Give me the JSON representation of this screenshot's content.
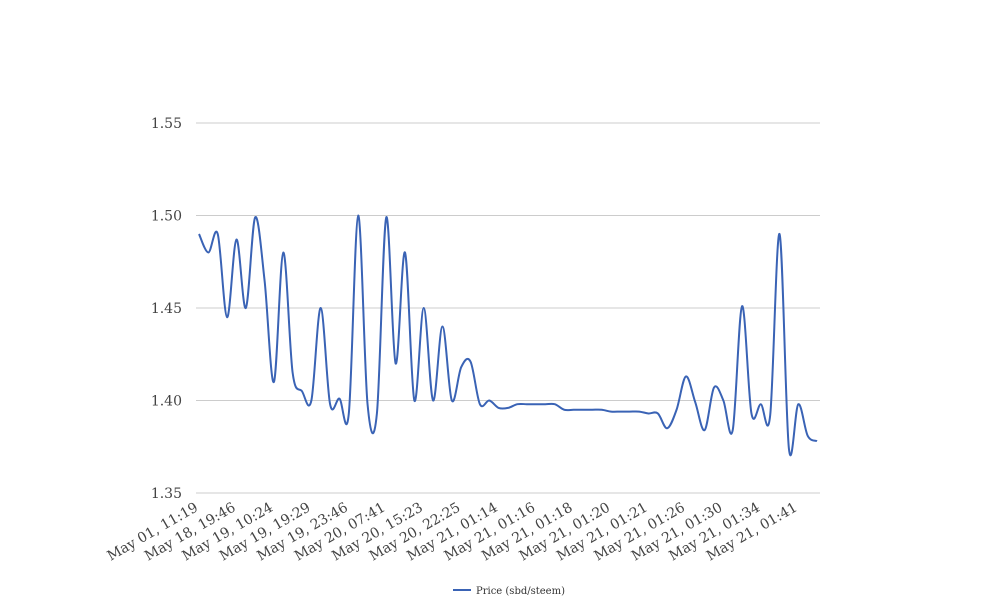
{
  "chart_data": {
    "type": "line",
    "categories": [
      "May 01, 11:19",
      null,
      null,
      null,
      "May 18, 19:46",
      null,
      null,
      null,
      "May 19, 10:24",
      null,
      null,
      null,
      "May 19, 19:29",
      null,
      null,
      null,
      "May 19, 23:46",
      null,
      null,
      null,
      "May 20, 07:41",
      null,
      null,
      null,
      "May 20, 15:23",
      null,
      null,
      null,
      "May 20, 22:25",
      null,
      null,
      null,
      "May 21, 01:14",
      null,
      null,
      null,
      "May 21, 01:16",
      null,
      null,
      null,
      "May 21, 01:18",
      null,
      null,
      null,
      "May 21, 01:20",
      null,
      null,
      null,
      "May 21, 01:21",
      null,
      null,
      null,
      "May 21, 01:26",
      null,
      null,
      null,
      "May 21, 01:30",
      null,
      null,
      null,
      "May 21, 01:34",
      null,
      null,
      null,
      "May 21, 01:41",
      null,
      null
    ],
    "series": [
      {
        "name": "Price (sbd/steem)",
        "color": "#3a63b5",
        "values": [
          1.49,
          1.48,
          1.49,
          1.445,
          1.487,
          1.45,
          1.499,
          1.465,
          1.41,
          1.48,
          1.415,
          1.405,
          1.4,
          1.45,
          1.398,
          1.401,
          1.393,
          1.5,
          1.398,
          1.393,
          1.499,
          1.42,
          1.48,
          1.4,
          1.45,
          1.4,
          1.44,
          1.4,
          1.418,
          1.421,
          1.398,
          1.4,
          1.396,
          1.396,
          1.398,
          1.398,
          1.398,
          1.398,
          1.398,
          1.395,
          1.395,
          1.395,
          1.395,
          1.395,
          1.394,
          1.394,
          1.394,
          1.394,
          1.393,
          1.393,
          1.385,
          1.395,
          1.413,
          1.399,
          1.384,
          1.407,
          1.4,
          1.384,
          1.451,
          1.393,
          1.398,
          1.392,
          1.49,
          1.374,
          1.398,
          1.381,
          1.378
        ]
      }
    ],
    "ylim": [
      1.35,
      1.55
    ],
    "yticks": [
      1.35,
      {
        "value": 1.4,
        "label": "1.40"
      },
      1.45,
      {
        "value": 1.5,
        "label": "1.50"
      },
      1.55
    ],
    "grid": true,
    "legend": "bottom"
  }
}
